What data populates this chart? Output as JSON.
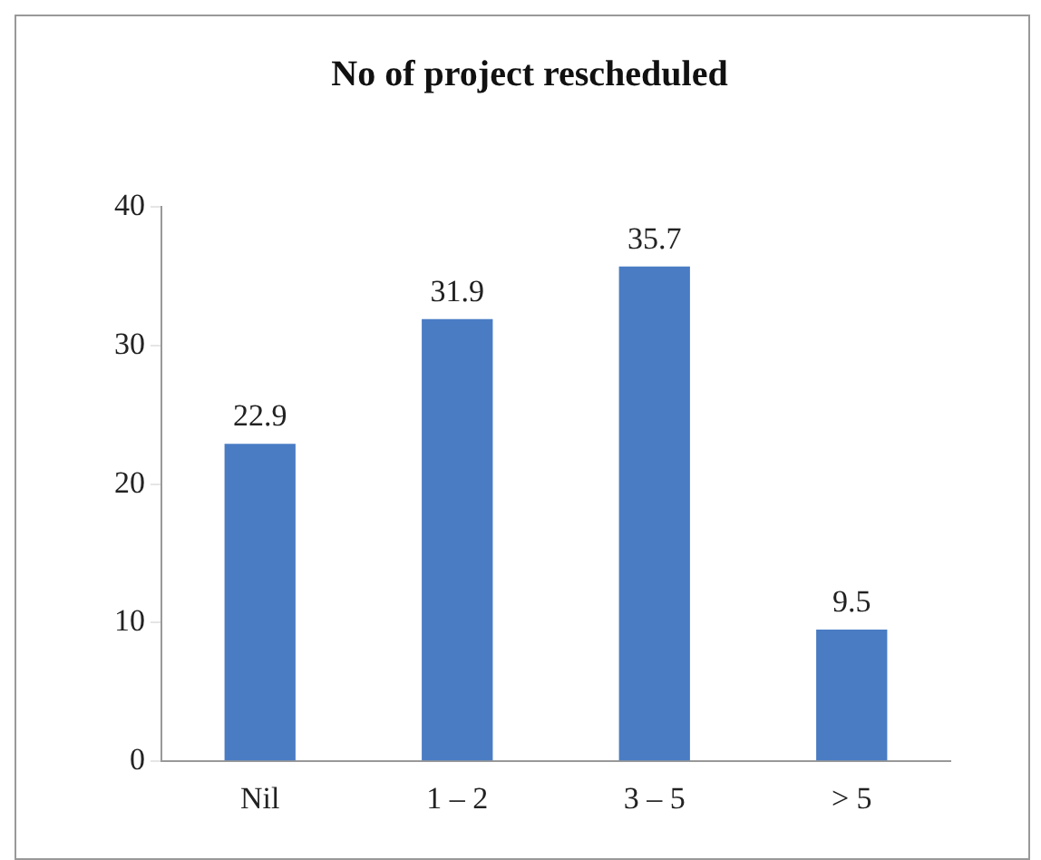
{
  "chart_data": {
    "type": "bar",
    "title": "No of project rescheduled",
    "categories": [
      "Nil",
      "1 – 2",
      "3 – 5",
      "> 5"
    ],
    "values": [
      22.9,
      31.9,
      35.7,
      9.5
    ],
    "color": "#4a7cc4",
    "ylim": [
      0,
      40
    ],
    "yticks": [
      0,
      10,
      20,
      30,
      40
    ],
    "grid": false,
    "legend": false,
    "data_labels": true
  }
}
